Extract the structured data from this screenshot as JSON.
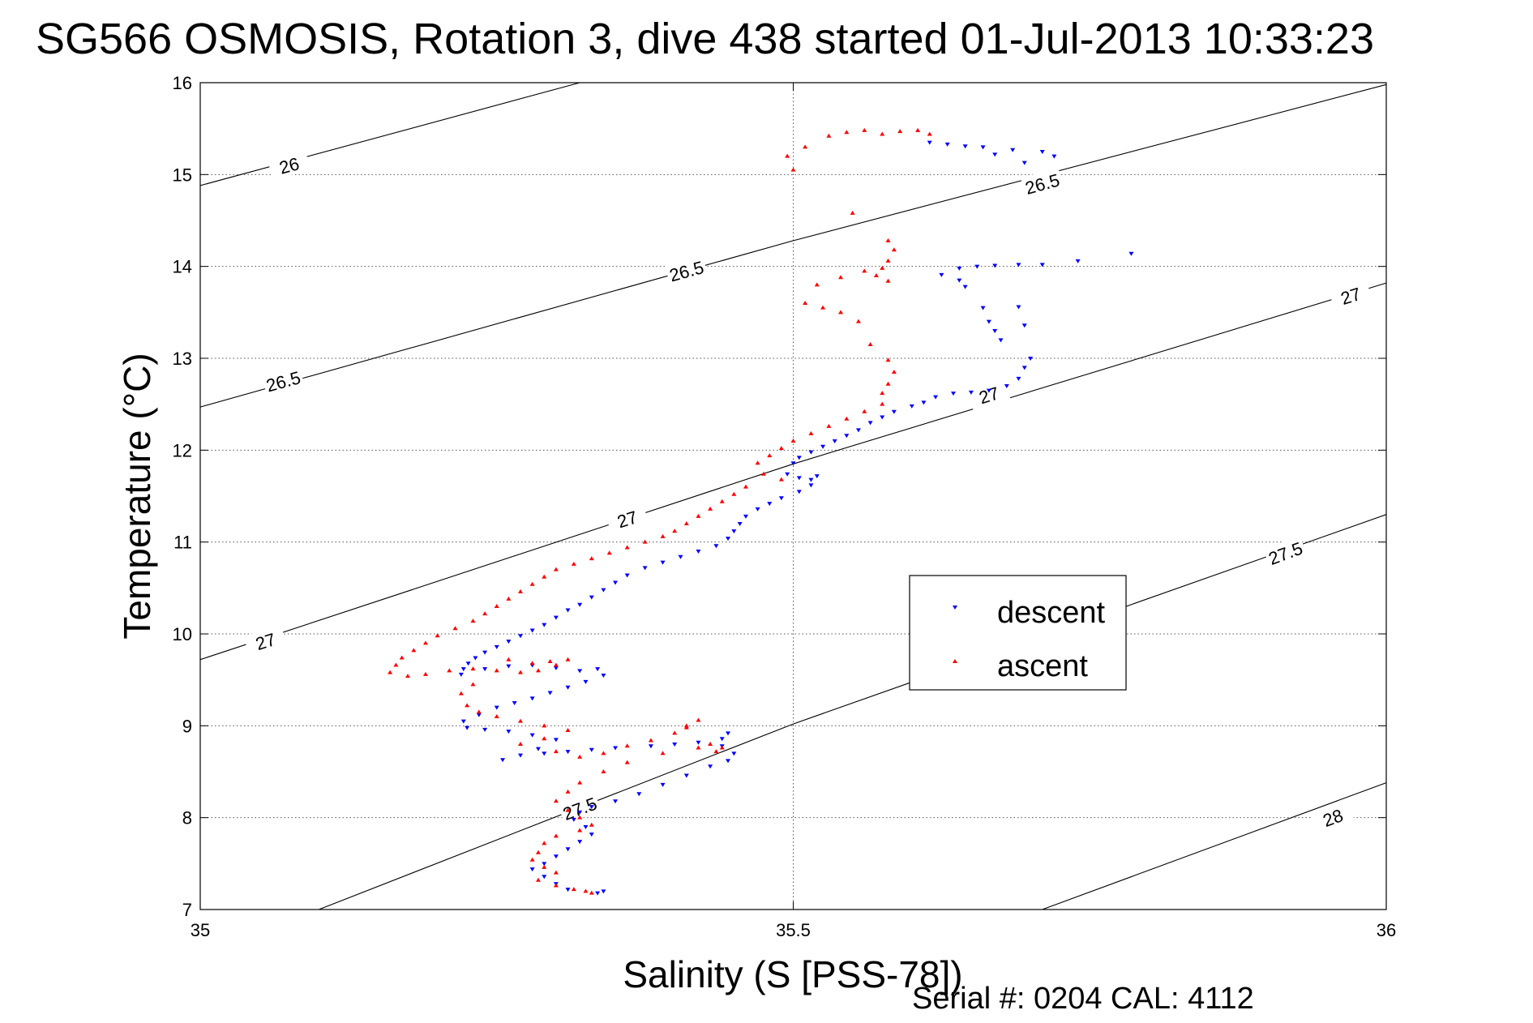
{
  "chart_data": {
    "type": "scatter",
    "title": "SG566 OSMOSIS, Rotation 3, dive 438 started 01-Jul-2013 10:33:23",
    "xlabel": "Salinity (S [PSS-78])",
    "ylabel": "Temperature (°C)",
    "xlim": [
      35,
      36
    ],
    "ylim": [
      7,
      16
    ],
    "x_ticks": [
      "35",
      "35.5",
      "36"
    ],
    "y_ticks": [
      "7",
      "8",
      "9",
      "10",
      "11",
      "12",
      "13",
      "14",
      "15",
      "16"
    ],
    "grid": "dotted",
    "legend_position": "center-right",
    "footer": "Serial #: 0204  CAL: 4112",
    "contours": [
      {
        "level": "26",
        "points": [
          [
            35.0,
            14.88
          ],
          [
            35.32,
            16.0
          ]
        ],
        "labels": [
          [
            35.075,
            15.1
          ]
        ]
      },
      {
        "level": "26.5",
        "points": [
          [
            35.0,
            12.47
          ],
          [
            35.5,
            14.28
          ],
          [
            36.0,
            15.98
          ]
        ],
        "labels": [
          [
            35.07,
            12.75
          ],
          [
            35.41,
            13.95
          ],
          [
            35.71,
            14.9
          ]
        ]
      },
      {
        "level": "27",
        "points": [
          [
            35.0,
            9.72
          ],
          [
            35.5,
            11.85
          ],
          [
            36.0,
            13.82
          ]
        ],
        "labels": [
          [
            35.055,
            9.92
          ],
          [
            35.36,
            11.25
          ],
          [
            35.665,
            12.6
          ],
          [
            35.97,
            13.68
          ]
        ]
      },
      {
        "level": "27.5",
        "points": [
          [
            35.1,
            7.0
          ],
          [
            35.5,
            9.02
          ],
          [
            36.0,
            11.3
          ]
        ],
        "labels": [
          [
            35.32,
            8.1
          ],
          [
            35.915,
            10.88
          ]
        ]
      },
      {
        "level": "28",
        "points": [
          [
            35.71,
            7.0
          ],
          [
            36.0,
            8.38
          ]
        ],
        "labels": [
          [
            35.955,
            8.0
          ]
        ]
      }
    ],
    "series": [
      {
        "name": "descent",
        "color": "#0000ff",
        "marker": "triangle-down",
        "points": [
          [
            35.615,
            15.35
          ],
          [
            35.63,
            15.33
          ],
          [
            35.645,
            15.31
          ],
          [
            35.66,
            15.3
          ],
          [
            35.67,
            15.22
          ],
          [
            35.685,
            15.27
          ],
          [
            35.695,
            15.13
          ],
          [
            35.71,
            15.25
          ],
          [
            35.72,
            15.2
          ],
          [
            35.625,
            13.91
          ],
          [
            35.64,
            13.98
          ],
          [
            35.655,
            14.0
          ],
          [
            35.67,
            14.01
          ],
          [
            35.69,
            14.02
          ],
          [
            35.71,
            14.02
          ],
          [
            35.74,
            14.06
          ],
          [
            35.785,
            14.14
          ],
          [
            35.64,
            13.85
          ],
          [
            35.645,
            13.78
          ],
          [
            35.66,
            13.55
          ],
          [
            35.665,
            13.4
          ],
          [
            35.67,
            13.3
          ],
          [
            35.675,
            13.2
          ],
          [
            35.69,
            13.56
          ],
          [
            35.695,
            13.36
          ],
          [
            35.7,
            13.0
          ],
          [
            35.695,
            12.9
          ],
          [
            35.69,
            12.78
          ],
          [
            35.68,
            12.7
          ],
          [
            35.665,
            12.65
          ],
          [
            35.65,
            12.63
          ],
          [
            35.635,
            12.62
          ],
          [
            35.62,
            12.58
          ],
          [
            35.61,
            12.52
          ],
          [
            35.6,
            12.48
          ],
          [
            35.585,
            12.42
          ],
          [
            35.575,
            12.36
          ],
          [
            35.565,
            12.3
          ],
          [
            35.555,
            12.22
          ],
          [
            35.545,
            12.16
          ],
          [
            35.535,
            12.1
          ],
          [
            35.525,
            12.04
          ],
          [
            35.515,
            11.98
          ],
          [
            35.505,
            11.92
          ],
          [
            35.5,
            11.86
          ],
          [
            35.495,
            11.74
          ],
          [
            35.505,
            11.7
          ],
          [
            35.515,
            11.68
          ],
          [
            35.52,
            11.72
          ],
          [
            35.515,
            11.62
          ],
          [
            35.505,
            11.55
          ],
          [
            35.49,
            11.48
          ],
          [
            35.48,
            11.42
          ],
          [
            35.47,
            11.36
          ],
          [
            35.46,
            11.28
          ],
          [
            35.455,
            11.2
          ],
          [
            35.45,
            11.12
          ],
          [
            35.445,
            11.04
          ],
          [
            35.435,
            10.96
          ],
          [
            35.42,
            10.9
          ],
          [
            35.405,
            10.84
          ],
          [
            35.39,
            10.78
          ],
          [
            35.375,
            10.72
          ],
          [
            35.36,
            10.64
          ],
          [
            35.35,
            10.56
          ],
          [
            35.34,
            10.48
          ],
          [
            35.33,
            10.4
          ],
          [
            35.32,
            10.32
          ],
          [
            35.31,
            10.26
          ],
          [
            35.3,
            10.18
          ],
          [
            35.29,
            10.1
          ],
          [
            35.28,
            10.04
          ],
          [
            35.27,
            9.98
          ],
          [
            35.26,
            9.92
          ],
          [
            35.25,
            9.86
          ],
          [
            35.24,
            9.8
          ],
          [
            35.232,
            9.74
          ],
          [
            35.226,
            9.68
          ],
          [
            35.222,
            9.62
          ],
          [
            35.22,
            9.56
          ],
          [
            35.24,
            9.62
          ],
          [
            35.26,
            9.65
          ],
          [
            35.28,
            9.66
          ],
          [
            35.3,
            9.63
          ],
          [
            35.32,
            9.6
          ],
          [
            35.335,
            9.62
          ],
          [
            35.34,
            9.55
          ],
          [
            35.325,
            9.48
          ],
          [
            35.31,
            9.42
          ],
          [
            35.295,
            9.36
          ],
          [
            35.28,
            9.3
          ],
          [
            35.265,
            9.25
          ],
          [
            35.25,
            9.2
          ],
          [
            35.235,
            9.12
          ],
          [
            35.222,
            9.05
          ],
          [
            35.225,
            8.98
          ],
          [
            35.24,
            8.96
          ],
          [
            35.26,
            8.94
          ],
          [
            35.28,
            8.9
          ],
          [
            35.3,
            8.85
          ],
          [
            35.285,
            8.75
          ],
          [
            35.27,
            8.68
          ],
          [
            35.255,
            8.63
          ],
          [
            35.29,
            8.7
          ],
          [
            35.31,
            8.72
          ],
          [
            35.33,
            8.74
          ],
          [
            35.35,
            8.76
          ],
          [
            35.38,
            8.78
          ],
          [
            35.4,
            8.8
          ],
          [
            35.42,
            8.82
          ],
          [
            35.44,
            8.86
          ],
          [
            35.445,
            8.92
          ],
          [
            35.44,
            8.78
          ],
          [
            35.45,
            8.7
          ],
          [
            35.445,
            8.62
          ],
          [
            35.43,
            8.56
          ],
          [
            35.41,
            8.46
          ],
          [
            35.39,
            8.36
          ],
          [
            35.37,
            8.26
          ],
          [
            35.35,
            8.18
          ],
          [
            35.33,
            8.12
          ],
          [
            35.32,
            8.06
          ],
          [
            35.315,
            7.98
          ],
          [
            35.325,
            7.9
          ],
          [
            35.33,
            7.82
          ],
          [
            35.32,
            7.74
          ],
          [
            35.31,
            7.66
          ],
          [
            35.3,
            7.58
          ],
          [
            35.29,
            7.5
          ],
          [
            35.28,
            7.44
          ],
          [
            35.29,
            7.36
          ],
          [
            35.3,
            7.28
          ],
          [
            35.31,
            7.22
          ],
          [
            35.335,
            7.18
          ],
          [
            35.34,
            7.2
          ]
        ]
      },
      {
        "name": "ascent",
        "color": "#ff0000",
        "marker": "triangle-up",
        "points": [
          [
            35.495,
            15.2
          ],
          [
            35.5,
            15.05
          ],
          [
            35.51,
            15.3
          ],
          [
            35.53,
            15.42
          ],
          [
            35.545,
            15.46
          ],
          [
            35.56,
            15.48
          ],
          [
            35.575,
            15.44
          ],
          [
            35.59,
            15.47
          ],
          [
            35.605,
            15.48
          ],
          [
            35.615,
            15.44
          ],
          [
            35.55,
            14.58
          ],
          [
            35.58,
            14.28
          ],
          [
            35.585,
            14.18
          ],
          [
            35.58,
            14.06
          ],
          [
            35.575,
            13.98
          ],
          [
            35.57,
            13.9
          ],
          [
            35.58,
            13.84
          ],
          [
            35.56,
            13.95
          ],
          [
            35.54,
            13.88
          ],
          [
            35.52,
            13.8
          ],
          [
            35.51,
            13.6
          ],
          [
            35.525,
            13.55
          ],
          [
            35.54,
            13.5
          ],
          [
            35.555,
            13.4
          ],
          [
            35.565,
            13.15
          ],
          [
            35.58,
            12.98
          ],
          [
            35.585,
            12.85
          ],
          [
            35.58,
            12.72
          ],
          [
            35.575,
            12.62
          ],
          [
            35.575,
            12.5
          ],
          [
            35.56,
            12.42
          ],
          [
            35.545,
            12.34
          ],
          [
            35.53,
            12.26
          ],
          [
            35.515,
            12.18
          ],
          [
            35.5,
            12.1
          ],
          [
            35.49,
            12.02
          ],
          [
            35.48,
            11.94
          ],
          [
            35.47,
            11.86
          ],
          [
            35.475,
            11.74
          ],
          [
            35.49,
            11.68
          ],
          [
            35.46,
            11.6
          ],
          [
            35.45,
            11.52
          ],
          [
            35.44,
            11.44
          ],
          [
            35.43,
            11.36
          ],
          [
            35.42,
            11.28
          ],
          [
            35.41,
            11.2
          ],
          [
            35.4,
            11.12
          ],
          [
            35.39,
            11.06
          ],
          [
            35.375,
            11.0
          ],
          [
            35.36,
            10.94
          ],
          [
            35.345,
            10.88
          ],
          [
            35.33,
            10.82
          ],
          [
            35.315,
            10.76
          ],
          [
            35.3,
            10.7
          ],
          [
            35.29,
            10.62
          ],
          [
            35.28,
            10.54
          ],
          [
            35.27,
            10.46
          ],
          [
            35.26,
            10.38
          ],
          [
            35.25,
            10.3
          ],
          [
            35.24,
            10.22
          ],
          [
            35.23,
            10.14
          ],
          [
            35.215,
            10.06
          ],
          [
            35.2,
            9.98
          ],
          [
            35.19,
            9.9
          ],
          [
            35.18,
            9.82
          ],
          [
            35.17,
            9.74
          ],
          [
            35.165,
            9.66
          ],
          [
            35.16,
            9.58
          ],
          [
            35.175,
            9.54
          ],
          [
            35.19,
            9.56
          ],
          [
            35.21,
            9.6
          ],
          [
            35.23,
            9.62
          ],
          [
            35.25,
            9.6
          ],
          [
            35.27,
            9.58
          ],
          [
            35.285,
            9.6
          ],
          [
            35.3,
            9.66
          ],
          [
            35.31,
            9.72
          ],
          [
            35.295,
            9.7
          ],
          [
            35.28,
            9.68
          ],
          [
            35.26,
            9.72
          ],
          [
            35.23,
            9.45
          ],
          [
            35.22,
            9.35
          ],
          [
            35.225,
            9.22
          ],
          [
            35.235,
            9.15
          ],
          [
            35.25,
            9.1
          ],
          [
            35.27,
            9.05
          ],
          [
            35.29,
            9.0
          ],
          [
            35.31,
            8.95
          ],
          [
            35.29,
            8.86
          ],
          [
            35.27,
            8.8
          ],
          [
            35.3,
            8.72
          ],
          [
            35.32,
            8.66
          ],
          [
            35.34,
            8.7
          ],
          [
            35.36,
            8.78
          ],
          [
            35.38,
            8.84
          ],
          [
            35.4,
            8.92
          ],
          [
            35.41,
            9.0
          ],
          [
            35.42,
            9.06
          ],
          [
            35.41,
            8.98
          ],
          [
            35.43,
            8.8
          ],
          [
            35.44,
            8.76
          ],
          [
            35.435,
            8.72
          ],
          [
            35.42,
            8.76
          ],
          [
            35.39,
            8.7
          ],
          [
            35.36,
            8.6
          ],
          [
            35.34,
            8.5
          ],
          [
            35.32,
            8.38
          ],
          [
            35.31,
            8.28
          ],
          [
            35.3,
            8.18
          ],
          [
            35.31,
            8.08
          ],
          [
            35.32,
            8.0
          ],
          [
            35.33,
            7.92
          ],
          [
            35.32,
            7.86
          ],
          [
            35.3,
            7.8
          ],
          [
            35.29,
            7.72
          ],
          [
            35.285,
            7.62
          ],
          [
            35.28,
            7.54
          ],
          [
            35.29,
            7.46
          ],
          [
            35.3,
            7.4
          ],
          [
            35.285,
            7.32
          ],
          [
            35.3,
            7.26
          ],
          [
            35.315,
            7.22
          ],
          [
            35.325,
            7.2
          ],
          [
            35.33,
            7.18
          ]
        ]
      }
    ]
  }
}
